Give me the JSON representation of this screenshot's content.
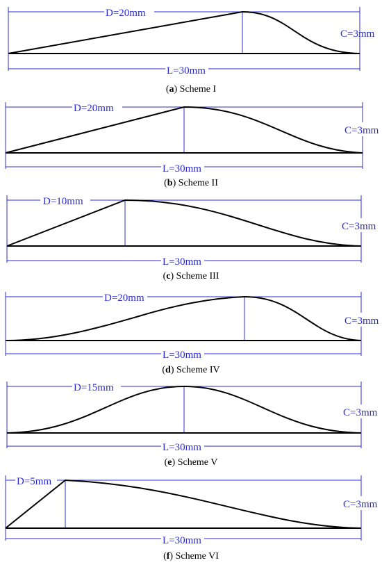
{
  "colors": {
    "dimension": "#2b2bd6",
    "profile": "#000000"
  },
  "panels": [
    {
      "id": "a",
      "d_label": "D=20mm",
      "l_label": "L=30mm",
      "c_label": "C=3mm",
      "caption_letter": "a",
      "caption_text": " Scheme I"
    },
    {
      "id": "b",
      "d_label": "D=20mm",
      "l_label": "L=30mm",
      "c_label": "C=3mm",
      "caption_letter": "b",
      "caption_text": " Scheme II"
    },
    {
      "id": "c",
      "d_label": "D=10mm",
      "l_label": "L=30mm",
      "c_label": "C=3mm",
      "caption_letter": "c",
      "caption_text": " Scheme III"
    },
    {
      "id": "d",
      "d_label": "D=20mm",
      "l_label": "L=30mm",
      "c_label": "C=3mm",
      "caption_letter": "d",
      "caption_text": " Scheme IV"
    },
    {
      "id": "e",
      "d_label": "D=15mm",
      "l_label": "L=30mm",
      "c_label": "C=3mm",
      "caption_letter": "e",
      "caption_text": " Scheme V"
    },
    {
      "id": "f",
      "d_label": "D=5mm",
      "l_label": "L=30mm",
      "c_label": "C=3mm",
      "caption_letter": "f",
      "caption_text": " Scheme VI"
    }
  ]
}
